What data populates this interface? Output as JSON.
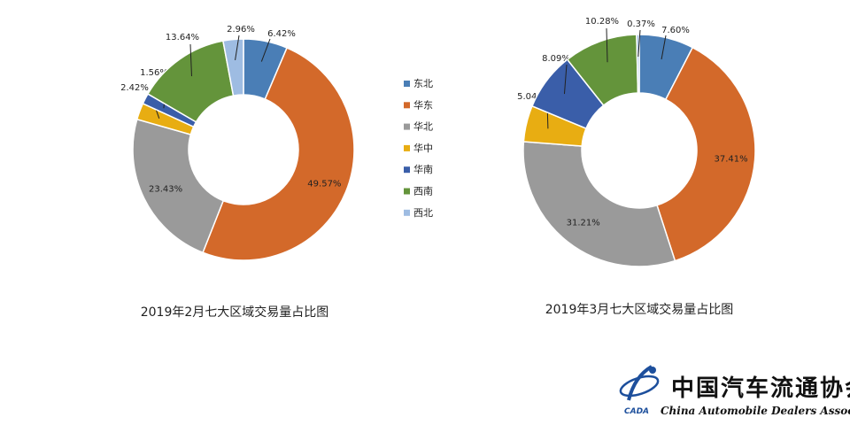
{
  "chart_data": [
    {
      "type": "pie",
      "title": "2019年2月七大区域交易量占比图",
      "categories": [
        "东北",
        "华东",
        "华北",
        "华中",
        "华南",
        "西南",
        "西北"
      ],
      "values": [
        6.42,
        49.57,
        23.43,
        2.42,
        1.56,
        13.64,
        2.96
      ],
      "labels": [
        "6.42%",
        "49.57%",
        "23.43%",
        "2.42%",
        "1.56%",
        "13.64%",
        "2.96%"
      ],
      "donut": true
    },
    {
      "type": "pie",
      "title": "2019年3月七大区域交易量占比图",
      "categories": [
        "东北",
        "华东",
        "华北",
        "华中",
        "华南",
        "西南",
        "西北"
      ],
      "values": [
        7.6,
        37.41,
        31.21,
        5.04,
        8.09,
        10.28,
        0.37
      ],
      "labels": [
        "7.60%",
        "37.41%",
        "31.21%",
        "5.04%",
        "8.09%",
        "10.28%",
        "0.37%"
      ],
      "donut": true
    }
  ],
  "legend": {
    "items": [
      "东北",
      "华东",
      "华北",
      "华中",
      "华南",
      "西南",
      "西北"
    ]
  },
  "colors": [
    "#4a7eb6",
    "#d3692a",
    "#9a9a9a",
    "#e8ad12",
    "#3a5ea9",
    "#64943b",
    "#9ebce2"
  ],
  "logo": {
    "cn": "中国汽车流通协会",
    "en": "China Automobile Dealers Association",
    "abbr": "CADA"
  }
}
